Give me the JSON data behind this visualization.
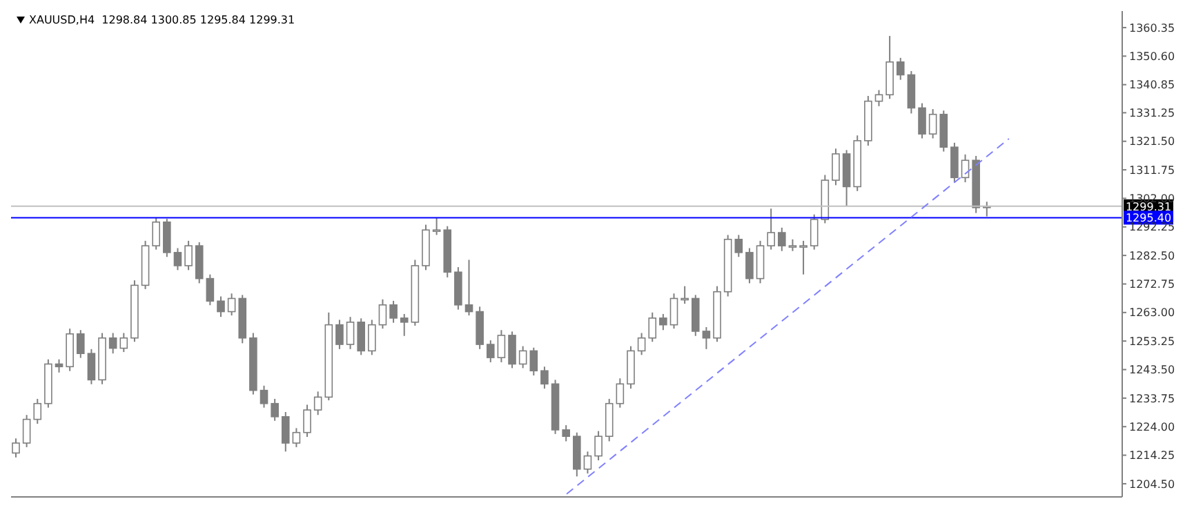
{
  "chart_data": {
    "type": "candlestick",
    "title": "XAUUSD,H4  1298.84 1300.85 1295.84 1299.31",
    "categories": [
      null,
      null,
      null,
      null,
      null,
      null,
      null,
      null,
      null,
      null,
      null,
      null,
      null,
      null,
      null,
      null,
      null,
      null,
      null,
      null,
      null,
      null,
      null,
      null,
      null,
      null,
      null,
      null,
      null,
      null,
      null,
      null,
      null,
      null,
      null,
      null,
      null,
      null,
      null,
      null,
      null,
      null,
      null,
      null,
      null,
      null,
      null,
      null,
      null,
      null,
      null,
      null,
      null,
      null,
      null,
      null,
      null,
      null,
      null,
      null,
      null,
      null,
      null,
      null,
      null,
      null,
      null,
      null,
      null,
      null,
      null,
      null,
      null,
      null,
      null,
      null,
      null,
      null,
      null,
      null,
      null,
      null,
      null,
      null,
      null,
      null,
      null,
      null,
      null,
      null,
      null,
      null,
      null,
      null,
      null,
      null,
      null,
      null,
      null,
      null,
      null,
      null,
      null
    ],
    "series": [
      {
        "type": "candlestick",
        "color": "#7f7f7f",
        "ohlc": [
          [
            1215.0,
            1220.0,
            1213.5,
            1218.4
          ],
          [
            1218.4,
            1228.0,
            1217.0,
            1226.5
          ],
          [
            1226.5,
            1233.5,
            1225.0,
            1231.9
          ],
          [
            1231.9,
            1247.0,
            1230.5,
            1245.4
          ],
          [
            1245.4,
            1247.0,
            1242.5,
            1244.5
          ],
          [
            1244.5,
            1257.5,
            1243.0,
            1255.7
          ],
          [
            1255.7,
            1257.0,
            1247.5,
            1249.0
          ],
          [
            1249.0,
            1250.5,
            1238.5,
            1240.0
          ],
          [
            1240.0,
            1256.0,
            1238.5,
            1254.3
          ],
          [
            1254.3,
            1256.0,
            1249.0,
            1250.8
          ],
          [
            1250.8,
            1256.0,
            1249.5,
            1254.3
          ],
          [
            1254.3,
            1274.0,
            1253.0,
            1272.3
          ],
          [
            1272.3,
            1287.5,
            1271.0,
            1285.8
          ],
          [
            1285.8,
            1295.4,
            1284.5,
            1293.9
          ],
          [
            1293.9,
            1295.0,
            1282.0,
            1283.5
          ],
          [
            1283.5,
            1285.0,
            1277.5,
            1279.0
          ],
          [
            1279.0,
            1287.5,
            1277.5,
            1285.8
          ],
          [
            1285.8,
            1287.0,
            1273.0,
            1274.6
          ],
          [
            1274.6,
            1276.0,
            1265.5,
            1266.9
          ],
          [
            1266.9,
            1268.5,
            1261.5,
            1263.3
          ],
          [
            1263.3,
            1269.5,
            1262.0,
            1267.8
          ],
          [
            1267.8,
            1269.0,
            1252.5,
            1254.3
          ],
          [
            1254.3,
            1256.0,
            1235.0,
            1236.4
          ],
          [
            1236.4,
            1238.0,
            1230.5,
            1231.9
          ],
          [
            1231.9,
            1233.5,
            1226.0,
            1227.4
          ],
          [
            1227.4,
            1229.0,
            1215.5,
            1218.4
          ],
          [
            1218.4,
            1223.5,
            1217.0,
            1222.0
          ],
          [
            1222.0,
            1231.5,
            1220.5,
            1229.7
          ],
          [
            1229.7,
            1236.0,
            1228.0,
            1234.1
          ],
          [
            1234.1,
            1263.0,
            1233.0,
            1258.8
          ],
          [
            1258.8,
            1260.5,
            1250.5,
            1252.1
          ],
          [
            1252.1,
            1261.5,
            1250.5,
            1259.7
          ],
          [
            1259.7,
            1261.0,
            1248.5,
            1249.9
          ],
          [
            1249.9,
            1260.5,
            1248.5,
            1258.8
          ],
          [
            1258.8,
            1267.5,
            1257.5,
            1265.6
          ],
          [
            1265.6,
            1267.0,
            1259.5,
            1261.1
          ],
          [
            1261.1,
            1262.5,
            1255.0,
            1259.7
          ],
          [
            1259.7,
            1281.0,
            1258.5,
            1279.0
          ],
          [
            1279.0,
            1293.0,
            1277.5,
            1291.2
          ],
          [
            1291.2,
            1295.4,
            1289.5,
            1291.2
          ],
          [
            1291.2,
            1292.5,
            1275.0,
            1276.8
          ],
          [
            1276.8,
            1278.5,
            1264.0,
            1265.6
          ],
          [
            1265.6,
            1281.0,
            1262.0,
            1263.3
          ],
          [
            1263.3,
            1265.0,
            1250.5,
            1252.1
          ],
          [
            1252.1,
            1253.5,
            1246.0,
            1247.6
          ],
          [
            1247.6,
            1257.0,
            1246.0,
            1255.2
          ],
          [
            1255.2,
            1256.5,
            1244.0,
            1245.4
          ],
          [
            1245.4,
            1251.5,
            1244.0,
            1249.9
          ],
          [
            1249.9,
            1251.0,
            1241.5,
            1243.1
          ],
          [
            1243.1,
            1244.5,
            1237.0,
            1238.6
          ],
          [
            1238.6,
            1240.0,
            1221.5,
            1222.9
          ],
          [
            1222.9,
            1224.5,
            1219.0,
            1220.7
          ],
          [
            1220.7,
            1222.0,
            1207.0,
            1209.5
          ],
          [
            1209.5,
            1215.5,
            1208.0,
            1214.0
          ],
          [
            1214.0,
            1222.5,
            1212.5,
            1220.7
          ],
          [
            1220.7,
            1233.5,
            1219.0,
            1231.9
          ],
          [
            1231.9,
            1240.5,
            1230.5,
            1238.6
          ],
          [
            1238.6,
            1251.5,
            1237.0,
            1249.9
          ],
          [
            1249.9,
            1256.0,
            1248.5,
            1254.3
          ],
          [
            1254.3,
            1263.0,
            1253.0,
            1261.1
          ],
          [
            1261.1,
            1262.5,
            1257.0,
            1258.8
          ],
          [
            1258.8,
            1269.5,
            1257.5,
            1267.8
          ],
          [
            1267.8,
            1272.0,
            1266.0,
            1267.8
          ],
          [
            1267.8,
            1269.0,
            1255.0,
            1256.6
          ],
          [
            1256.6,
            1258.0,
            1250.5,
            1254.3
          ],
          [
            1254.3,
            1272.0,
            1253.0,
            1270.1
          ],
          [
            1270.1,
            1289.5,
            1268.5,
            1288.0
          ],
          [
            1288.0,
            1289.5,
            1282.0,
            1283.5
          ],
          [
            1283.5,
            1285.0,
            1273.0,
            1274.6
          ],
          [
            1274.6,
            1287.5,
            1273.0,
            1285.8
          ],
          [
            1285.8,
            1298.5,
            1284.5,
            1290.3
          ],
          [
            1290.3,
            1292.0,
            1284.0,
            1285.8
          ],
          [
            1285.8,
            1288.0,
            1284.0,
            1285.8
          ],
          [
            1285.8,
            1287.5,
            1276.0,
            1285.8
          ],
          [
            1285.8,
            1296.5,
            1284.5,
            1294.8
          ],
          [
            1294.8,
            1310.0,
            1293.5,
            1308.2
          ],
          [
            1308.2,
            1319.0,
            1306.5,
            1317.2
          ],
          [
            1317.2,
            1318.5,
            1299.5,
            1306.0
          ],
          [
            1306.0,
            1323.5,
            1304.5,
            1321.7
          ],
          [
            1321.7,
            1337.0,
            1320.0,
            1335.2
          ],
          [
            1335.2,
            1339.0,
            1333.5,
            1337.4
          ],
          [
            1337.4,
            1357.5,
            1336.0,
            1348.6
          ],
          [
            1348.6,
            1350.0,
            1342.5,
            1344.2
          ],
          [
            1344.2,
            1345.5,
            1331.0,
            1332.9
          ],
          [
            1332.9,
            1334.5,
            1322.5,
            1324.0
          ],
          [
            1324.0,
            1332.5,
            1322.5,
            1330.7
          ],
          [
            1330.7,
            1332.0,
            1318.0,
            1319.5
          ],
          [
            1319.5,
            1321.0,
            1307.5,
            1309.1
          ],
          [
            1309.1,
            1317.0,
            1307.5,
            1315.0
          ],
          [
            1315.0,
            1316.5,
            1297.0,
            1298.84
          ],
          [
            1298.84,
            1300.85,
            1295.84,
            1299.31
          ],
          null,
          null,
          null,
          null,
          null,
          null,
          null,
          null,
          null,
          null,
          null,
          null
        ]
      },
      {
        "type": "line",
        "color": "#8080ff",
        "line_style": "dashed",
        "values": [
          null,
          null,
          null,
          null,
          null,
          null,
          null,
          null,
          null,
          null,
          null,
          null,
          null,
          null,
          null,
          null,
          null,
          null,
          null,
          null,
          null,
          null,
          null,
          null,
          null,
          null,
          null,
          null,
          null,
          null,
          null,
          null,
          null,
          null,
          null,
          null,
          null,
          null,
          null,
          null,
          null,
          null,
          null,
          null,
          null,
          null,
          null,
          null,
          null,
          null,
          null,
          1201.0,
          null,
          null,
          null,
          null,
          null,
          null,
          null,
          null,
          null,
          null,
          null,
          null,
          null,
          null,
          null,
          null,
          null,
          null,
          null,
          null,
          null,
          null,
          null,
          null,
          null,
          null,
          null,
          null,
          null,
          null,
          null,
          null,
          null,
          null,
          null,
          null,
          null,
          null,
          null,
          null,
          1322.4,
          null,
          null,
          null,
          null,
          null,
          null,
          null,
          null,
          null,
          null
        ]
      }
    ],
    "ylim": [
      1200,
      1366
    ],
    "yticks": [
      {
        "value": 1204.5,
        "label": "1204.50"
      },
      {
        "value": 1214.25,
        "label": "1214.25"
      },
      {
        "value": 1224,
        "label": "1224.00"
      },
      {
        "value": 1233.75,
        "label": "1233.75"
      },
      {
        "value": 1243.5,
        "label": "1243.50"
      },
      {
        "value": 1253.25,
        "label": "1253.25"
      },
      {
        "value": 1263,
        "label": "1263.00"
      },
      {
        "value": 1272.75,
        "label": "1272.75"
      },
      {
        "value": 1282.5,
        "label": "1282.50"
      },
      {
        "value": 1292.25,
        "label": "1292.25"
      },
      {
        "value": 1302,
        "label": "1302.00"
      },
      {
        "value": 1311.75,
        "label": "1311.75"
      },
      {
        "value": 1321.5,
        "label": "1321.50"
      },
      {
        "value": 1331.25,
        "label": "1331.25"
      },
      {
        "value": 1340.85,
        "label": "1340.85"
      },
      {
        "value": 1350.6,
        "label": "1350.60"
      },
      {
        "value": 1360.35,
        "label": "1360.35"
      }
    ],
    "ref_lines": [
      {
        "axis": "y",
        "value": 1299.31,
        "label": "1299.31",
        "color": "#c0c0c0"
      },
      {
        "axis": "y",
        "value": 1295.4,
        "label": "1295.40",
        "color": "#0000ff"
      }
    ],
    "tick_labels": "y",
    "grid": false,
    "legend": false
  }
}
